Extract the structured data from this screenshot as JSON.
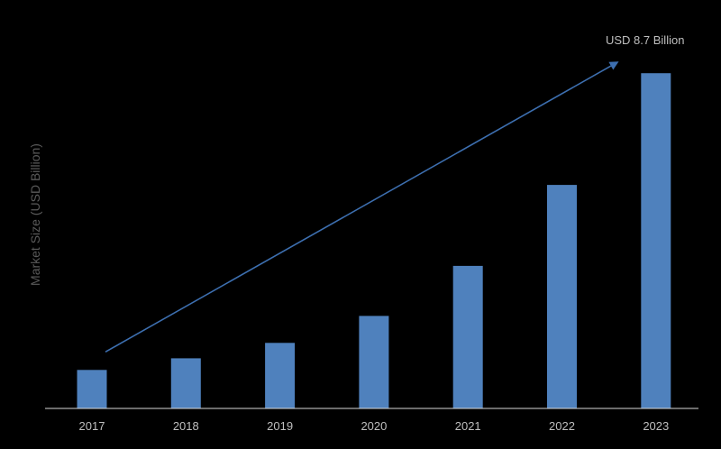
{
  "chart_data": {
    "type": "bar",
    "title": "",
    "xlabel": "",
    "ylabel": "Market Size (USD Billion)",
    "categories": [
      "2017",
      "2018",
      "2019",
      "2020",
      "2021",
      "2022",
      "2023"
    ],
    "values": [
      1.0,
      1.3,
      1.7,
      2.4,
      3.7,
      5.8,
      8.7
    ],
    "ylim": [
      0,
      9.5
    ],
    "grid": false,
    "legend": "none",
    "annotation": {
      "text": "USD 8.7 Billion",
      "from_category": "2017",
      "to_category": "2023",
      "type": "trend-arrow"
    },
    "colors": {
      "bar": "#4f81bd",
      "arrow": "#3d6fb0",
      "axis": "#d9d9d9",
      "background": "#000000"
    }
  }
}
